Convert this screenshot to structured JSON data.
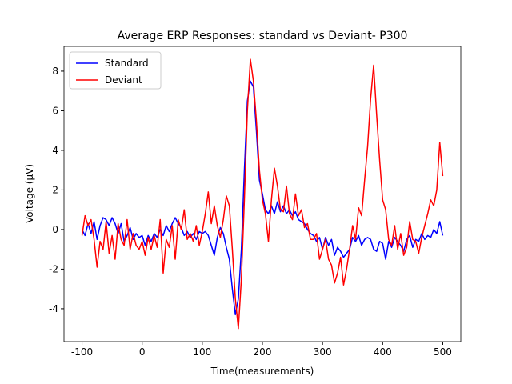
{
  "chart_data": {
    "type": "line",
    "title": "Average ERP Responses: standard vs Deviant- P300",
    "xlabel": "Time(measurements)",
    "ylabel": "Voltage (µV)",
    "x": [
      -100,
      -95,
      -90,
      -85,
      -80,
      -75,
      -70,
      -65,
      -60,
      -55,
      -50,
      -45,
      -40,
      -35,
      -30,
      -25,
      -20,
      -15,
      -10,
      -5,
      0,
      5,
      10,
      15,
      20,
      25,
      30,
      35,
      40,
      45,
      50,
      55,
      60,
      65,
      70,
      75,
      80,
      85,
      90,
      95,
      100,
      105,
      110,
      115,
      120,
      125,
      130,
      135,
      140,
      145,
      150,
      155,
      160,
      165,
      170,
      175,
      180,
      185,
      190,
      195,
      200,
      205,
      210,
      215,
      220,
      225,
      230,
      235,
      240,
      245,
      250,
      255,
      260,
      265,
      270,
      275,
      280,
      285,
      290,
      295,
      300,
      305,
      310,
      315,
      320,
      325,
      330,
      335,
      340,
      345,
      350,
      355,
      360,
      365,
      370,
      375,
      380,
      385,
      390,
      395,
      400,
      405,
      410,
      415,
      420,
      425,
      430,
      435,
      440,
      445,
      450,
      455,
      460,
      465,
      470,
      475,
      480,
      485,
      490,
      495,
      500
    ],
    "series": [
      {
        "name": "Standard",
        "color": "#0000ff",
        "values": [
          0,
          -0.3,
          0.3,
          -0.2,
          0.4,
          -0.5,
          0.2,
          0.6,
          0.5,
          0.2,
          0.6,
          0.3,
          -0.2,
          0.3,
          -0.6,
          -0.3,
          0.1,
          -0.5,
          -0.2,
          -0.4,
          -0.3,
          -0.8,
          -0.3,
          -0.6,
          -0.2,
          -0.4,
          0.0,
          -0.3,
          0.2,
          -0.1,
          0.3,
          0.6,
          0.3,
          0.1,
          -0.3,
          -0.1,
          -0.4,
          -0.2,
          -0.5,
          -0.1,
          -0.2,
          -0.1,
          -0.3,
          -0.8,
          -1.3,
          -0.4,
          0.1,
          -0.2,
          -0.9,
          -1.5,
          -3.0,
          -4.3,
          -3.5,
          -1.0,
          3.0,
          6.5,
          7.5,
          7.2,
          5.0,
          2.5,
          1.8,
          1.0,
          0.8,
          1.2,
          0.8,
          1.4,
          0.9,
          1.2,
          0.8,
          1.0,
          0.7,
          0.9,
          0.5,
          0.4,
          0.3,
          0.0,
          -0.2,
          -0.3,
          -0.6,
          -0.4,
          -1.0,
          -0.4,
          -0.8,
          -0.5,
          -1.3,
          -0.9,
          -1.1,
          -1.4,
          -1.2,
          -1.0,
          -0.4,
          -0.6,
          -0.3,
          -0.8,
          -0.5,
          -0.4,
          -0.5,
          -1.0,
          -1.1,
          -0.6,
          -0.7,
          -1.5,
          -0.6,
          -0.9,
          -0.4,
          -0.6,
          -0.8,
          -1.1,
          -0.5,
          -0.3,
          -0.9,
          -0.5,
          -0.6,
          -0.2,
          -0.5,
          -0.3,
          -0.4,
          0.0,
          -0.2,
          0.4,
          -0.3
        ]
      },
      {
        "name": "Deviant",
        "color": "#ff0000",
        "values": [
          -0.3,
          0.7,
          0.2,
          0.5,
          -0.5,
          -1.9,
          -0.6,
          -1.0,
          0.4,
          -1.2,
          -0.3,
          -1.5,
          0.3,
          -0.5,
          -0.8,
          0.5,
          -1.0,
          -0.2,
          -0.8,
          -1.0,
          -0.6,
          -1.3,
          -0.4,
          -1.0,
          -0.3,
          -0.9,
          0.5,
          -2.2,
          -0.5,
          -0.9,
          0.2,
          -1.5,
          0.5,
          0.0,
          1.0,
          -0.5,
          -0.2,
          -0.6,
          0.2,
          -0.8,
          -0.1,
          0.8,
          1.9,
          0.3,
          1.2,
          0.2,
          -0.4,
          0.5,
          1.7,
          1.2,
          -1.0,
          -3.5,
          -5.0,
          -2.5,
          1.5,
          6.0,
          8.6,
          7.5,
          5.5,
          3.0,
          1.5,
          0.8,
          -0.6,
          1.5,
          3.1,
          2.2,
          1.0,
          0.9,
          2.2,
          0.8,
          0.5,
          1.8,
          0.7,
          1.0,
          0.1,
          0.3,
          -0.5,
          -0.5,
          -0.2,
          -1.5,
          -1.0,
          -0.5,
          -1.5,
          -1.8,
          -2.7,
          -2.2,
          -1.4,
          -2.8,
          -2.0,
          -1.0,
          0.2,
          -0.5,
          1.1,
          0.7,
          2.5,
          4.2,
          6.6,
          8.3,
          5.8,
          3.5,
          1.5,
          1.0,
          -0.5,
          -0.8,
          0.2,
          -1.0,
          -0.2,
          -1.3,
          -0.9,
          0.4,
          -0.5,
          -0.6,
          -1.2,
          -0.4,
          0.2,
          0.8,
          1.5,
          1.2,
          2.0,
          4.4,
          2.7
        ]
      }
    ],
    "xlim": [
      -130,
      530
    ],
    "ylim": [
      -5.66,
      9.25
    ],
    "xticks": [
      -100,
      0,
      100,
      200,
      300,
      400,
      500
    ],
    "yticks": [
      -4,
      -2,
      0,
      2,
      4,
      6,
      8
    ],
    "legend": "upper left"
  }
}
